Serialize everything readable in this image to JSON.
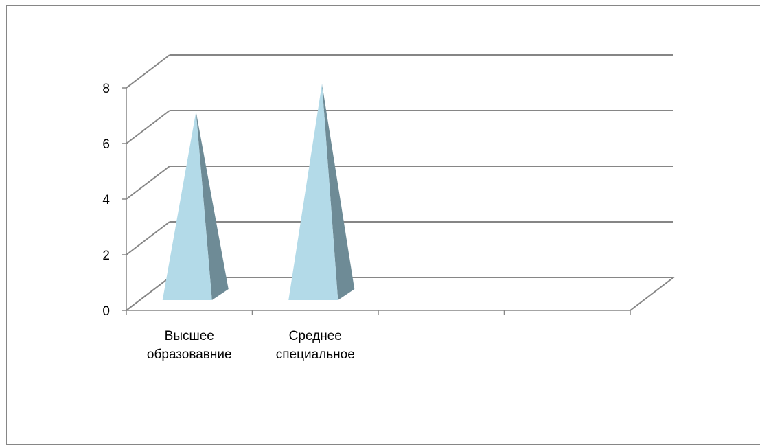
{
  "chart_data": {
    "type": "bar",
    "style": "3d-pyramid",
    "categories": [
      "Высшее образование",
      "Среднее специальное",
      "",
      ""
    ],
    "category_label_lines": [
      [
        "Высшее",
        "образовавние"
      ],
      [
        "Среднее",
        "специальное"
      ],
      [],
      []
    ],
    "values": [
      7,
      8,
      null,
      null
    ],
    "ylim": [
      0,
      8
    ],
    "yticks": [
      0,
      2,
      4,
      6,
      8
    ],
    "grid": true,
    "legend": "none",
    "title": "",
    "xlabel": "",
    "ylabel": ""
  },
  "colors": {
    "pyramid_front": "#b3dae8",
    "pyramid_side": "#6e8b96",
    "gridline": "#868686",
    "axis": "#868686",
    "frame": "#868686"
  }
}
